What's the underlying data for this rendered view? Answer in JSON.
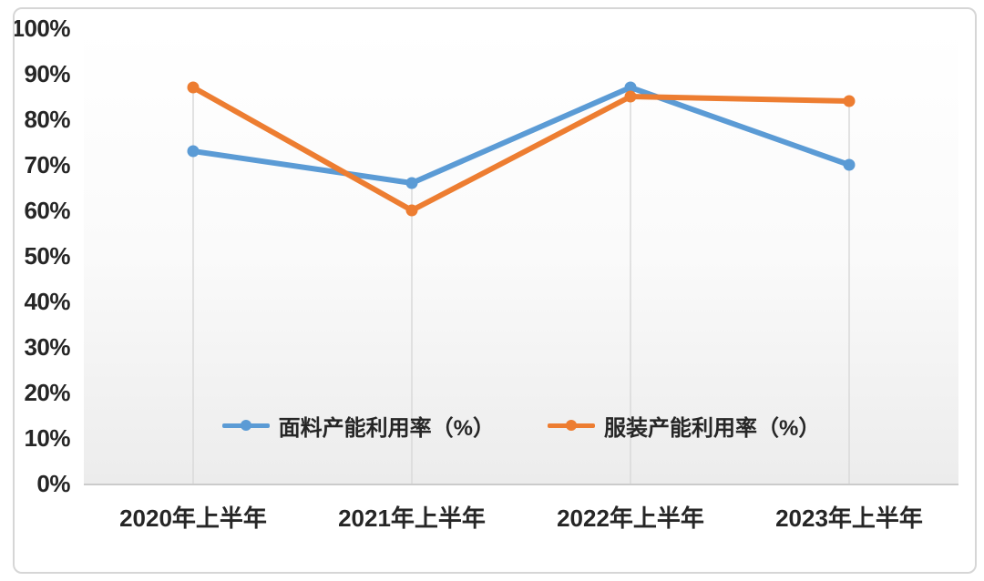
{
  "chart_data": {
    "type": "line",
    "categories": [
      "2020年上半年",
      "2021年上半年",
      "2022年上半年",
      "2023年上半年"
    ],
    "series": [
      {
        "name": "面料产能利用率（%）",
        "values": [
          73,
          66,
          87,
          70
        ],
        "color": "#5B9BD5"
      },
      {
        "name": "服装产能利用率（%）",
        "values": [
          87,
          60,
          85,
          84
        ],
        "color": "#ED7D31"
      }
    ],
    "title": "",
    "xlabel": "",
    "ylabel": "",
    "ylim": [
      0,
      100
    ],
    "ytick_step": 10,
    "ytick_labels": [
      "0%",
      "10%",
      "20%",
      "30%",
      "40%",
      "50%",
      "60%",
      "70%",
      "80%",
      "90%",
      "100%"
    ],
    "grid": "vertical-drop-lines-only",
    "legend_position": "inside-bottom-center"
  },
  "colors": {
    "series_fabric": "#5B9BD5",
    "series_garment": "#ED7D31",
    "drop_line": "#D9D9D9",
    "axis_line": "#CBCBCB",
    "text": "#262626",
    "frame_border": "#D6D6D6"
  }
}
